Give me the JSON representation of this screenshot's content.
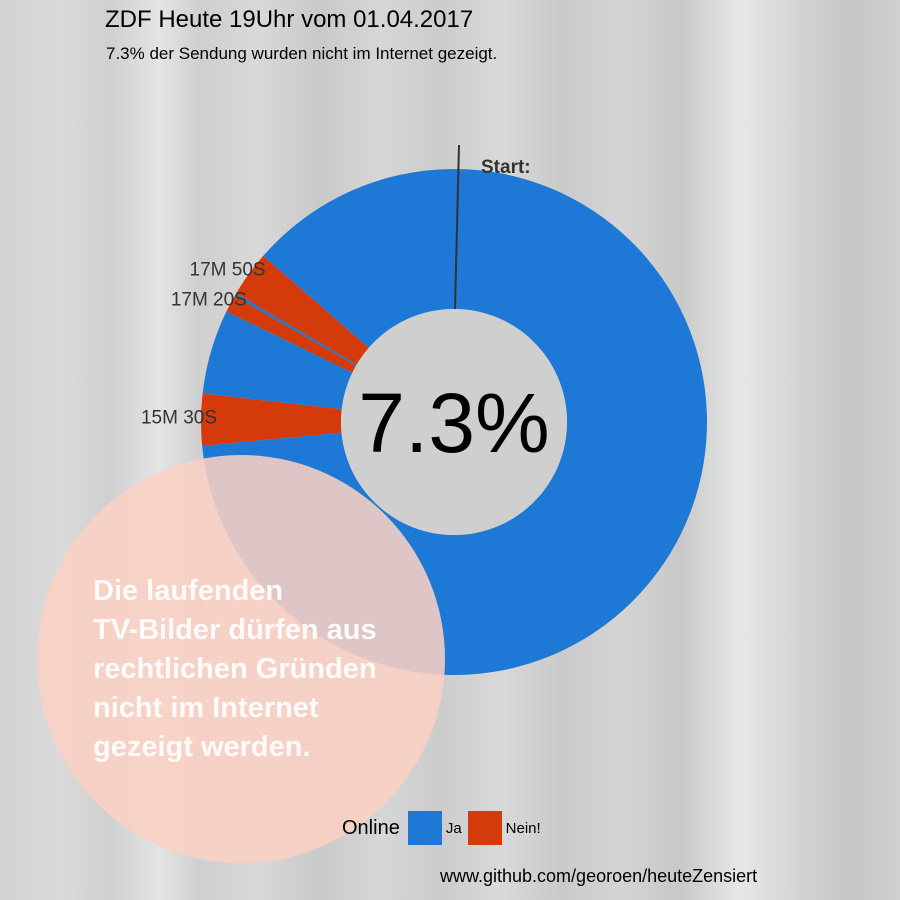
{
  "title": "ZDF Heute 19Uhr vom 01.04.2017",
  "subtitle": "7.3% der Sendung wurden nicht im Internet gezeigt.",
  "center_label": "7.3%",
  "start_label": "Start:",
  "overlay_text": "Die laufenden\nTV-Bilder dürfen aus\nrechtlichen Gründen\nnicht im Internet\ngezeigt werden.",
  "footer": "www.github.com/georoen/heuteZensiert",
  "legend": {
    "title": "Online",
    "items": [
      {
        "label": "Ja",
        "color": "#1e78d6"
      },
      {
        "label": "Nein!",
        "color": "#d43a0a"
      }
    ]
  },
  "chart_data": {
    "type": "pie",
    "style": "donut",
    "title": "ZDF Heute 19Uhr vom 01.04.2017",
    "subtitle": "7.3% der Sendung wurden nicht im Internet gezeigt.",
    "center_label": "7.3%",
    "start_label": "Start:",
    "legend_title": "Online",
    "legend_placement": "bottom",
    "categories": [
      "Ja",
      "Nein!"
    ],
    "colors": {
      "Ja": "#1e78d6",
      "Nein!": "#d43a0a"
    },
    "segments": [
      {
        "category": "Ja",
        "fraction": 0.735
      },
      {
        "category": "Nein!",
        "fraction": 0.033
      },
      {
        "category": "Ja",
        "fraction": 0.054
      },
      {
        "category": "Nein!",
        "fraction": 0.011
      },
      {
        "category": "Ja",
        "fraction": 0.002
      },
      {
        "category": "Nein!",
        "fraction": 0.029
      },
      {
        "category": "Ja",
        "fraction": 0.136
      }
    ],
    "annotations": [
      {
        "text": "15M 30S",
        "segment": 1
      },
      {
        "text": "17M 20S",
        "segment": 3
      },
      {
        "text": "17M 50S",
        "segment": 5
      }
    ]
  }
}
